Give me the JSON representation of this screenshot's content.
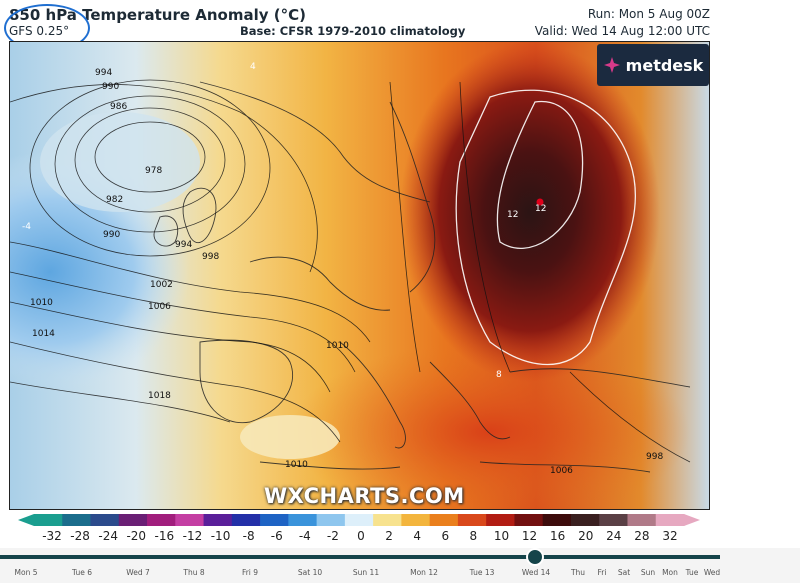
{
  "header": {
    "title": "850 hPa Temperature Anomaly (°C)",
    "model": "GFS 0.25°",
    "base": "Base: CFSR 1979-2010 climatology",
    "run": "Run: Mon 5 Aug 00Z",
    "valid": "Valid: Wed 14 Aug 12:00 UTC"
  },
  "logo": {
    "text": "metdesk",
    "icon": "metdesk-logo-icon"
  },
  "watermark": "WXCHARTS.COM",
  "isobars": [
    {
      "label": "994"
    },
    {
      "label": "990"
    },
    {
      "label": "986"
    },
    {
      "label": "978"
    },
    {
      "label": "982"
    },
    {
      "label": "990"
    },
    {
      "label": "994"
    },
    {
      "label": "998"
    },
    {
      "label": "1002"
    },
    {
      "label": "1006"
    },
    {
      "label": "1010"
    },
    {
      "label": "1014"
    },
    {
      "label": "1010"
    },
    {
      "label": "1018"
    },
    {
      "label": "1010"
    },
    {
      "label": "1006"
    },
    {
      "label": "998"
    }
  ],
  "map_values": [
    {
      "label": "12"
    },
    {
      "label": "12"
    },
    {
      "label": "8"
    },
    {
      "label": "4"
    },
    {
      "label": "-4"
    },
    {
      "label": "4"
    }
  ],
  "colorbar": {
    "labels": [
      "-32",
      "-28",
      "-24",
      "-20",
      "-16",
      "-12",
      "-10",
      "-8",
      "-6",
      "-4",
      "-2",
      "0",
      "2",
      "4",
      "6",
      "8",
      "10",
      "12",
      "16",
      "20",
      "24",
      "28",
      "32"
    ],
    "colors": [
      "#1a9e8f",
      "#1b6d8c",
      "#2b4b8c",
      "#6a1f75",
      "#a11e7d",
      "#c43ea3",
      "#5a1f9a",
      "#2330a8",
      "#1e63c4",
      "#3a93db",
      "#8ec6ee",
      "#ddeffa",
      "#f7e28e",
      "#f3b53d",
      "#ea7f1d",
      "#d9481b",
      "#b21d13",
      "#721010",
      "#3d0c0c",
      "#3a2020",
      "#5a4045",
      "#b07a88",
      "#e6a8c0"
    ]
  },
  "timeline": {
    "current": "Wed 14",
    "progress": 0.74,
    "days": [
      "Mon 5",
      "Tue 6",
      "Wed 7",
      "Thu 8",
      "Fri 9",
      "Sat 10",
      "Sun 11",
      "Mon 12",
      "Tue 13",
      "Wed 14",
      "Thu",
      "Fri",
      "Sat",
      "Sun",
      "Mon",
      "Tue",
      "Wed"
    ]
  }
}
